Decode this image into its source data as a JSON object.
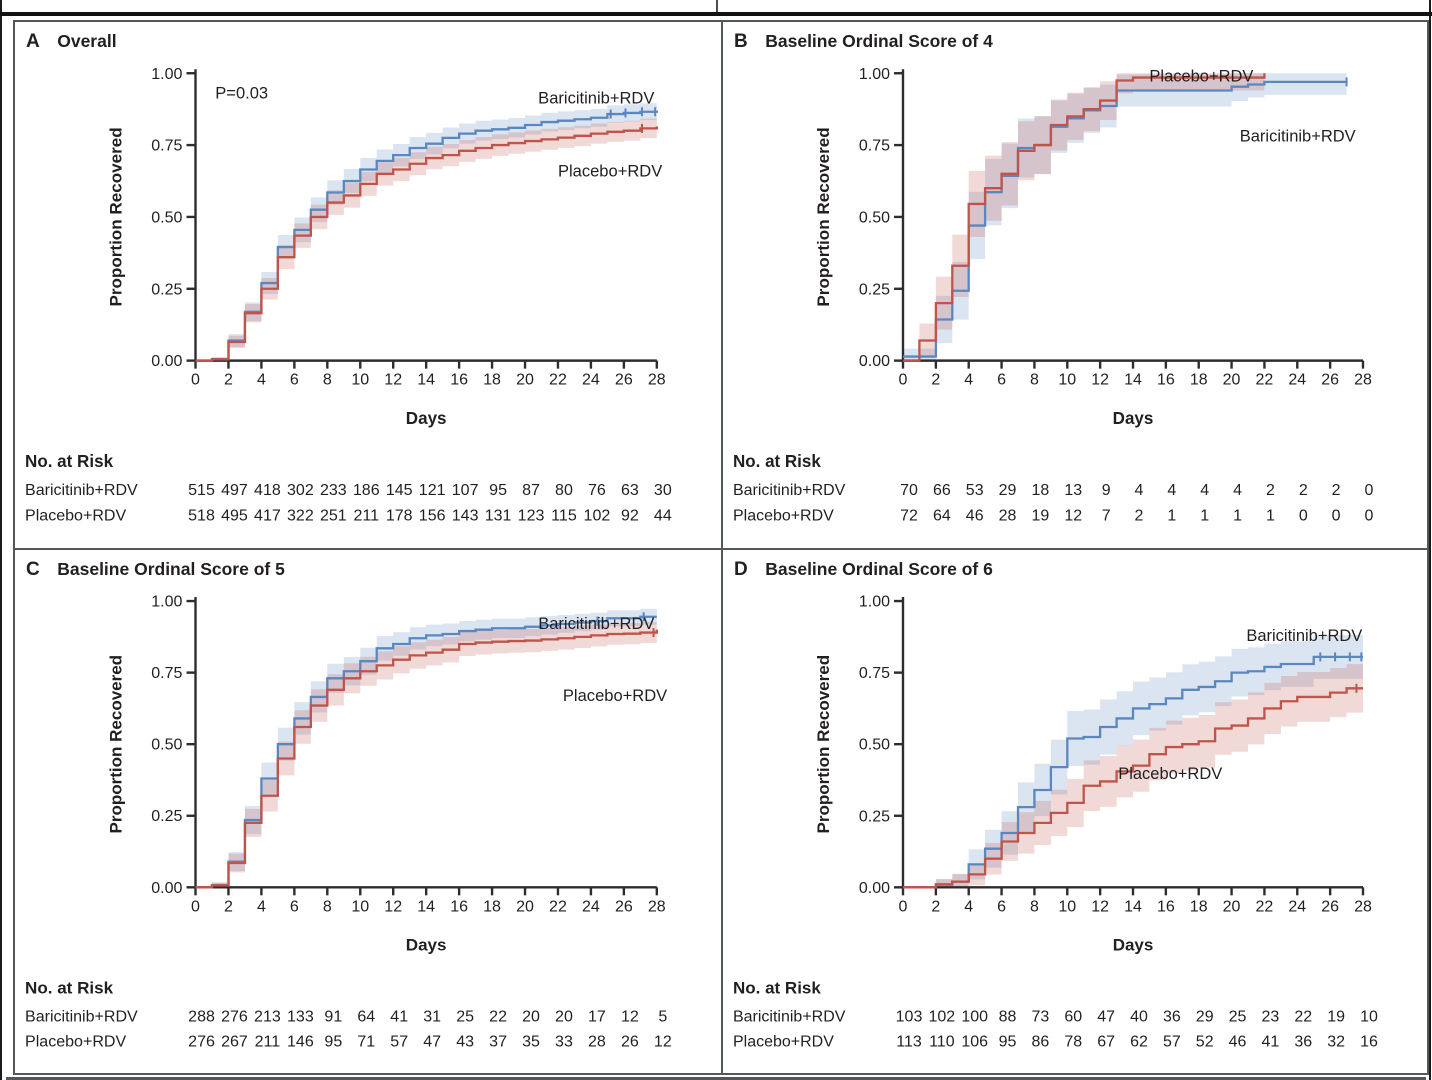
{
  "figure": {
    "labels": {
      "no_at_risk": "No. at Risk",
      "days_axis": "Days",
      "proportion_axis": "Proportion Recovered"
    },
    "colors": {
      "baricitinib_line": "#5b87c0",
      "placebo_line": "#c0544a",
      "band_opacity": 0.22,
      "axis": "#2e2d2c",
      "text": "#231f20",
      "panel_border": "#55585a"
    }
  },
  "chart_data": [
    {
      "panel": "A",
      "title": "Overall",
      "type": "step-line",
      "xlabel": "Days",
      "ylabel": "Proportion Recovered",
      "xlim": [
        0,
        28
      ],
      "ylim": [
        0,
        1
      ],
      "grid": false,
      "legend_position": "inline-annotation",
      "x_ticks": [
        0,
        2,
        4,
        6,
        8,
        10,
        12,
        14,
        16,
        18,
        20,
        22,
        24,
        26,
        28
      ],
      "y_ticks": [
        "0.00",
        "0.25",
        "0.50",
        "0.75",
        "1.00"
      ],
      "annotation": {
        "text": "P=0.03",
        "day": 1.2,
        "p": 0.912
      },
      "min_ci": 0.02,
      "series": [
        {
          "name": "Baricitinib+RDV",
          "color": "#5b87c0",
          "n": 515,
          "values": [
            0,
            0.005,
            0.07,
            0.17,
            0.27,
            0.395,
            0.455,
            0.525,
            0.585,
            0.625,
            0.665,
            0.695,
            0.715,
            0.74,
            0.755,
            0.775,
            0.79,
            0.8,
            0.805,
            0.81,
            0.82,
            0.83,
            0.835,
            0.84,
            0.845,
            0.858,
            0.862,
            0.866,
            0.87
          ],
          "censor_days": [
            25.2,
            26.1,
            27.1,
            27.9
          ],
          "label_anchor": {
            "day": 20.8,
            "p": 0.895
          }
        },
        {
          "name": "Placebo+RDV",
          "color": "#c0544a",
          "n": 518,
          "values": [
            0,
            0.005,
            0.065,
            0.165,
            0.25,
            0.36,
            0.435,
            0.5,
            0.55,
            0.575,
            0.615,
            0.65,
            0.665,
            0.685,
            0.705,
            0.715,
            0.73,
            0.74,
            0.75,
            0.757,
            0.764,
            0.77,
            0.776,
            0.782,
            0.79,
            0.796,
            0.8,
            0.808,
            0.815
          ],
          "censor_days": [
            27.1
          ],
          "label_anchor": {
            "day": 22.0,
            "p": 0.64
          }
        }
      ],
      "at_risk": {
        "rows": [
          {
            "label": "Baricitinib+RDV",
            "values": [
              515,
              497,
              418,
              302,
              233,
              186,
              145,
              121,
              107,
              95,
              87,
              80,
              76,
              63,
              30
            ]
          },
          {
            "label": "Placebo+RDV",
            "values": [
              518,
              495,
              417,
              322,
              251,
              211,
              178,
              156,
              143,
              131,
              123,
              115,
              102,
              92,
              44
            ]
          }
        ]
      }
    },
    {
      "panel": "B",
      "title": "Baseline Ordinal Score of 4",
      "type": "step-line",
      "xlabel": "Days",
      "ylabel": "Proportion Recovered",
      "xlim": [
        0,
        28
      ],
      "ylim": [
        0,
        1
      ],
      "grid": false,
      "legend_position": "inline-annotation",
      "x_ticks": [
        0,
        2,
        4,
        6,
        8,
        10,
        12,
        14,
        16,
        18,
        20,
        22,
        24,
        26,
        28
      ],
      "y_ticks": [
        "0.00",
        "0.25",
        "0.50",
        "0.75",
        "1.00"
      ],
      "annotation": null,
      "min_ci": 0.045,
      "series": [
        {
          "name": "Baricitinib+RDV",
          "color": "#5b87c0",
          "n": 70,
          "values": [
            0.014,
            0.014,
            0.143,
            0.243,
            0.47,
            0.586,
            0.643,
            0.74,
            0.75,
            0.814,
            0.843,
            0.871,
            0.886,
            0.94,
            0.94,
            0.94,
            0.94,
            0.94,
            0.94,
            0.94,
            0.953,
            0.961,
            0.97,
            0.97,
            0.97,
            0.97,
            0.97,
            0.97
          ],
          "censor_days": [
            27.0
          ],
          "label_anchor": {
            "day": 20.5,
            "p": 0.762
          }
        },
        {
          "name": "Placebo+RDV",
          "color": "#c0544a",
          "n": 72,
          "values": [
            0,
            0.07,
            0.2,
            0.33,
            0.545,
            0.6,
            0.65,
            0.73,
            0.75,
            0.82,
            0.85,
            0.875,
            0.905,
            0.975,
            0.985,
            0.985,
            0.985,
            0.985,
            0.985,
            0.985,
            0.985,
            0.985,
            1.0
          ],
          "censor_days": [],
          "label_anchor": {
            "day": 15.0,
            "p": 0.972
          }
        }
      ],
      "at_risk": {
        "rows": [
          {
            "label": "Baricitinib+RDV",
            "values": [
              70,
              66,
              53,
              29,
              18,
              13,
              9,
              4,
              4,
              4,
              4,
              2,
              2,
              2,
              0
            ]
          },
          {
            "label": "Placebo+RDV",
            "values": [
              72,
              64,
              46,
              28,
              19,
              12,
              7,
              2,
              1,
              1,
              1,
              1,
              0,
              0,
              0
            ]
          }
        ]
      }
    },
    {
      "panel": "C",
      "title": "Baseline Ordinal Score of 5",
      "type": "step-line",
      "xlabel": "Days",
      "ylabel": "Proportion Recovered",
      "xlim": [
        0,
        28
      ],
      "ylim": [
        0,
        1
      ],
      "grid": false,
      "legend_position": "inline-annotation",
      "x_ticks": [
        0,
        2,
        4,
        6,
        8,
        10,
        12,
        14,
        16,
        18,
        20,
        22,
        24,
        26,
        28
      ],
      "y_ticks": [
        "0.00",
        "0.25",
        "0.50",
        "0.75",
        "1.00"
      ],
      "annotation": null,
      "min_ci": 0.028,
      "series": [
        {
          "name": "Baricitinib+RDV",
          "color": "#5b87c0",
          "n": 288,
          "values": [
            0,
            0.007,
            0.09,
            0.235,
            0.38,
            0.5,
            0.59,
            0.665,
            0.73,
            0.755,
            0.79,
            0.835,
            0.85,
            0.87,
            0.88,
            0.885,
            0.895,
            0.9,
            0.905,
            0.905,
            0.91,
            0.915,
            0.92,
            0.925,
            0.93,
            0.94,
            0.94,
            0.945,
            0.945
          ],
          "censor_days": [
            24.4,
            27.2
          ],
          "label_anchor": {
            "day": 20.8,
            "p": 0.902
          }
        },
        {
          "name": "Placebo+RDV",
          "color": "#c0544a",
          "n": 276,
          "values": [
            0,
            0.007,
            0.085,
            0.225,
            0.32,
            0.45,
            0.56,
            0.635,
            0.69,
            0.73,
            0.755,
            0.775,
            0.795,
            0.81,
            0.82,
            0.83,
            0.85,
            0.855,
            0.858,
            0.86,
            0.862,
            0.866,
            0.87,
            0.875,
            0.88,
            0.885,
            0.886,
            0.89,
            0.9
          ],
          "censor_days": [
            27.8
          ],
          "label_anchor": {
            "day": 22.3,
            "p": 0.65
          }
        }
      ],
      "at_risk": {
        "rows": [
          {
            "label": "Baricitinib+RDV",
            "values": [
              288,
              276,
              213,
              133,
              91,
              64,
              41,
              31,
              25,
              22,
              20,
              20,
              17,
              12,
              5
            ]
          },
          {
            "label": "Placebo+RDV",
            "values": [
              276,
              267,
              211,
              146,
              95,
              71,
              57,
              47,
              43,
              37,
              35,
              33,
              28,
              26,
              12
            ]
          }
        ]
      }
    },
    {
      "panel": "D",
      "title": "Baseline Ordinal Score of 6",
      "type": "step-line",
      "xlabel": "Days",
      "ylabel": "Proportion Recovered",
      "xlim": [
        0,
        28
      ],
      "ylim": [
        0,
        1
      ],
      "grid": false,
      "legend_position": "inline-annotation",
      "x_ticks": [
        0,
        2,
        4,
        6,
        8,
        10,
        12,
        14,
        16,
        18,
        20,
        22,
        24,
        26,
        28
      ],
      "y_ticks": [
        "0.00",
        "0.25",
        "0.50",
        "0.75",
        "1.00"
      ],
      "annotation": null,
      "min_ci": 0.05,
      "series": [
        {
          "name": "Baricitinib+RDV",
          "color": "#5b87c0",
          "n": 103,
          "values": [
            0,
            0,
            0.01,
            0.02,
            0.08,
            0.135,
            0.19,
            0.28,
            0.34,
            0.42,
            0.52,
            0.525,
            0.56,
            0.59,
            0.625,
            0.64,
            0.66,
            0.69,
            0.7,
            0.72,
            0.75,
            0.755,
            0.77,
            0.78,
            0.78,
            0.805,
            0.805,
            0.805,
            0.805
          ],
          "censor_days": [
            25.4,
            26.3,
            27.2,
            27.9
          ],
          "label_anchor": {
            "day": 20.9,
            "p": 0.86
          }
        },
        {
          "name": "Placebo+RDV",
          "color": "#c0544a",
          "n": 113,
          "values": [
            0,
            0,
            0.01,
            0.02,
            0.045,
            0.1,
            0.16,
            0.19,
            0.225,
            0.26,
            0.295,
            0.355,
            0.37,
            0.405,
            0.425,
            0.465,
            0.49,
            0.5,
            0.51,
            0.555,
            0.565,
            0.59,
            0.625,
            0.65,
            0.665,
            0.665,
            0.68,
            0.695,
            0.695
          ],
          "censor_days": [
            27.6
          ],
          "label_anchor": {
            "day": 13.1,
            "p": 0.378
          }
        }
      ],
      "at_risk": {
        "rows": [
          {
            "label": "Baricitinib+RDV",
            "values": [
              103,
              102,
              100,
              88,
              73,
              60,
              47,
              40,
              36,
              29,
              25,
              23,
              22,
              19,
              10
            ]
          },
          {
            "label": "Placebo+RDV",
            "values": [
              113,
              110,
              106,
              95,
              86,
              78,
              67,
              62,
              57,
              52,
              46,
              41,
              36,
              32,
              16
            ]
          }
        ]
      }
    }
  ]
}
